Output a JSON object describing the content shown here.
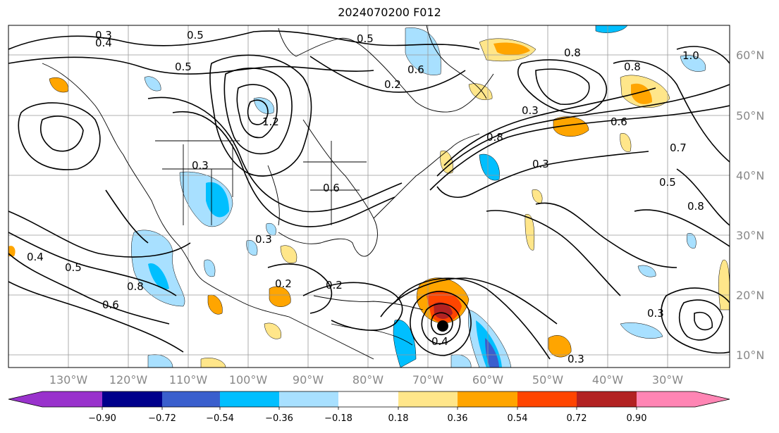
{
  "title": "2024070200 F012",
  "map": {
    "lon_labels": [
      "130°W",
      "120°W",
      "110°W",
      "100°W",
      "90°W",
      "80°W",
      "70°W",
      "60°W",
      "50°W",
      "40°W",
      "30°W"
    ],
    "lat_labels": [
      "60°N",
      "50°N",
      "40°N",
      "30°N",
      "20°N",
      "10°N"
    ],
    "contour_labels": [
      "0.3",
      "0.4",
      "0.5",
      "0.5",
      "0.6",
      "0.2",
      "1.0",
      "1.2",
      "0.8",
      "0.6",
      "0.3",
      "0.5",
      "0.3",
      "0.8",
      "0.6",
      "0.3",
      "0.5",
      "0.4",
      "0.5",
      "0.6",
      "0.8",
      "0.3",
      "0.2",
      "0.2",
      "0.3",
      "0.4",
      "0.7",
      "0.8",
      "0.3",
      "0.8"
    ]
  },
  "colorbar": {
    "ticks": [
      "−0.90",
      "−0.72",
      "−0.54",
      "−0.36",
      "−0.18",
      "0.18",
      "0.36",
      "0.54",
      "0.72",
      "0.90"
    ],
    "colors": [
      "#9932cc",
      "#00008b",
      "#3a5fcd",
      "#00bfff",
      "#a8e0ff",
      "#ffffff",
      "#ffe68a",
      "#ffa500",
      "#ff4500",
      "#b22222",
      "#ff85b4"
    ]
  }
}
